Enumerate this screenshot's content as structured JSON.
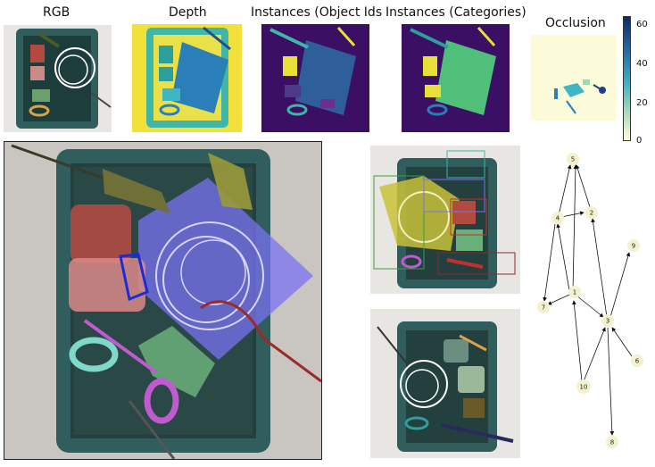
{
  "titles": {
    "rgb": "RGB",
    "depth": "Depth",
    "instances_ids": "Instances (Object Ids",
    "instances_categories": "Instances (Categories)",
    "occlusion": "Occlusion"
  },
  "colorbar": {
    "ticks": [
      "60",
      "40",
      "20",
      "0"
    ],
    "colors": [
      "#0b2a6f",
      "#2a7fb8",
      "#3fb6c4",
      "#9fd8b8",
      "#ffffd8"
    ]
  },
  "graph": {
    "nodes": [
      "5",
      "4",
      "2",
      "9",
      "7",
      "1",
      "3",
      "6",
      "10",
      "8"
    ]
  },
  "colors": {
    "tray": "#2f5e5c",
    "tray_dark": "#1c3d3c",
    "depth_yellow": "#f2e13a",
    "ids_bg": "#3b0f63",
    "occlusion_bg": "#fbfbd9",
    "overlay_blue": "#7a72f2",
    "node_fill": "#f4f1cf"
  }
}
